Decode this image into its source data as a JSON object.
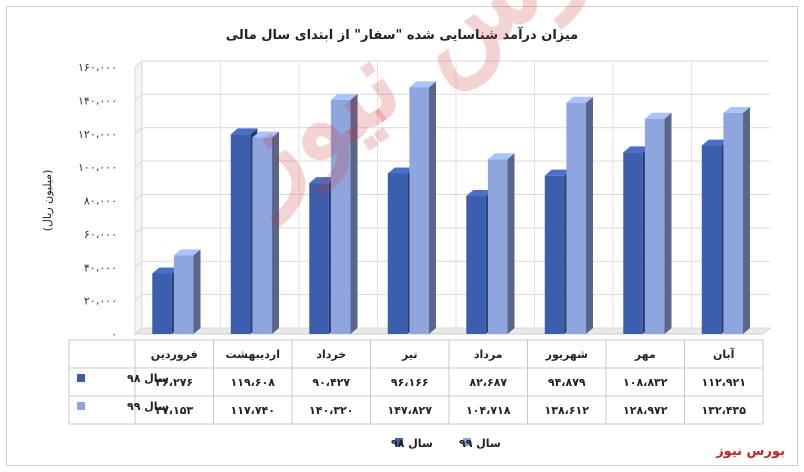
{
  "chart_data": {
    "type": "bar",
    "title": "میزان درآمد شناسایی شده \"سفار\" از ابتدای سال مالی",
    "ylabel": "(میلیون ریال)",
    "xlabel": "",
    "ylim": [
      0,
      160000
    ],
    "yticks": [
      "۱۶۰،۰۰۰",
      "۱۴۰،۰۰۰",
      "۱۲۰،۰۰۰",
      "۱۰۰،۰۰۰",
      "۸۰،۰۰۰",
      "۶۰،۰۰۰",
      "۴۰،۰۰۰",
      "۲۰،۰۰۰",
      "۰"
    ],
    "categories": [
      "فروردین",
      "اردیبهشت",
      "خرداد",
      "تیر",
      "مرداد",
      "شهریور",
      "مهر",
      "آبان"
    ],
    "series": [
      {
        "name": "سال ۹۸",
        "color": "#3b5fad",
        "values": [
          36276,
          119608,
          90427,
          96166,
          82687,
          94879,
          108832,
          112921
        ],
        "labels": [
          "۳۶،۲۷۶",
          "۱۱۹،۶۰۸",
          "۹۰،۴۲۷",
          "۹۶،۱۶۶",
          "۸۲،۶۸۷",
          "۹۴،۸۷۹",
          "۱۰۸،۸۳۲",
          "۱۱۲،۹۲۱"
        ]
      },
      {
        "name": "سال ۹۹",
        "color": "#8ea5dd",
        "values": [
          47153,
          117740,
          140320,
          147827,
          104718,
          138612,
          128972,
          132435
        ],
        "labels": [
          "۴۷،۱۵۳",
          "۱۱۷،۷۴۰",
          "۱۴۰،۳۲۰",
          "۱۴۷،۸۲۷",
          "۱۰۴،۷۱۸",
          "۱۳۸،۶۱۲",
          "۱۲۸،۹۷۲",
          "۱۳۲،۴۳۵"
        ]
      }
    ],
    "grid": true,
    "legend": "bottom",
    "data_table": true
  },
  "watermark": "بورس نیوز",
  "brand": "بورس نیوز"
}
